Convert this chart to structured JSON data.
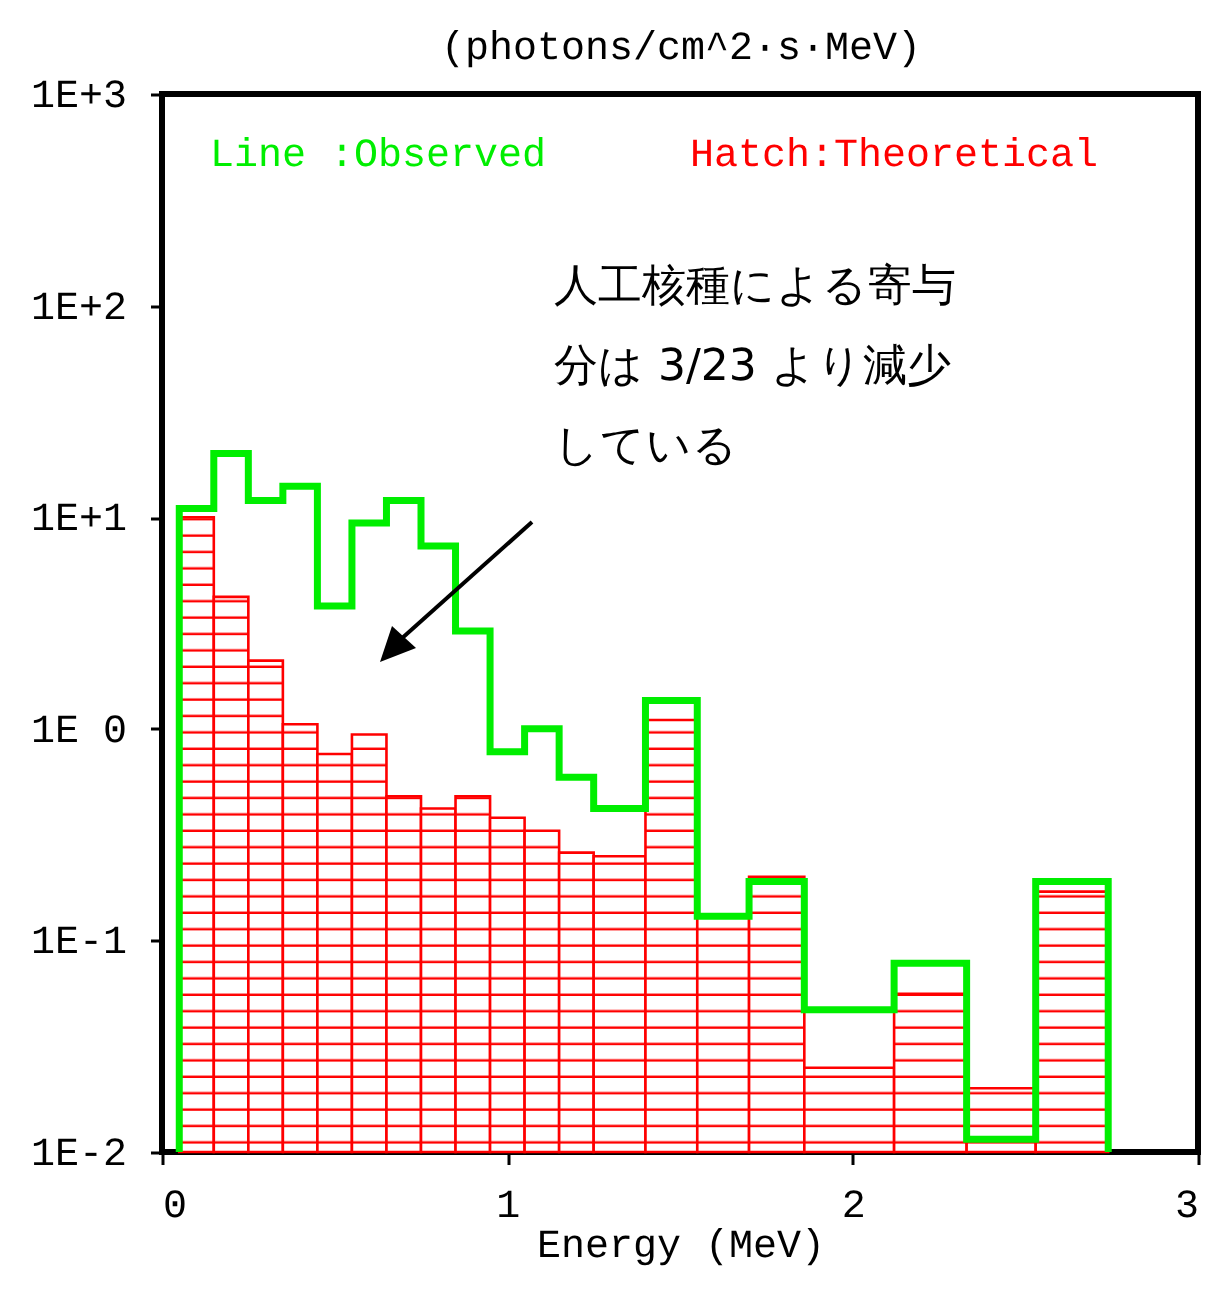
{
  "chart_data": {
    "type": "histogram",
    "ylabel": "(photons/cm^2·s·MeV)",
    "xlabel": "Energy (MeV)",
    "bins": [
      0.05,
      0.15,
      0.25,
      0.35,
      0.45,
      0.55,
      0.65,
      0.75,
      0.85,
      0.95,
      1.05,
      1.15,
      1.25,
      1.4,
      1.55,
      1.7,
      1.86,
      2.12,
      2.33,
      2.53,
      2.74
    ],
    "series": [
      {
        "name": "Line :Observed",
        "line_style": "solid",
        "color": "#00ee00",
        "values": [
          11,
          20,
          12,
          14,
          3.8,
          9.4,
          12,
          7.3,
          2.9,
          0.78,
          1.0,
          0.59,
          0.42,
          1.36,
          0.13,
          0.19,
          0.047,
          0.078,
          0.0115,
          0.19
        ]
      },
      {
        "name": "Hatch:Theoretical",
        "color": "#ff0000",
        "values": [
          10,
          4.2,
          2.1,
          1.05,
          0.76,
          0.94,
          0.48,
          0.42,
          0.48,
          0.38,
          0.33,
          0.26,
          0.25,
          1.1,
          0.13,
          0.2,
          0.025,
          0.056,
          0.02,
          0.17
        ]
      }
    ],
    "log": true,
    "xlim": [
      0,
      3
    ],
    "xticks": [
      0,
      1,
      2,
      3
    ],
    "ylim": [
      0.01,
      1000
    ],
    "yticks": [
      {
        "value": 1000,
        "label": "1E+3"
      },
      {
        "value": 100,
        "label": "1E+2"
      },
      {
        "value": 10,
        "label": "1E+1"
      },
      {
        "value": 1,
        "label": "1E 0"
      },
      {
        "value": 0.1,
        "label": "1E-1"
      },
      {
        "value": 0.01,
        "label": "1E-2"
      }
    ],
    "legend": "top",
    "grid": false,
    "annotations": [
      "人工核種による寄与分は 3/23 より減少している"
    ]
  }
}
